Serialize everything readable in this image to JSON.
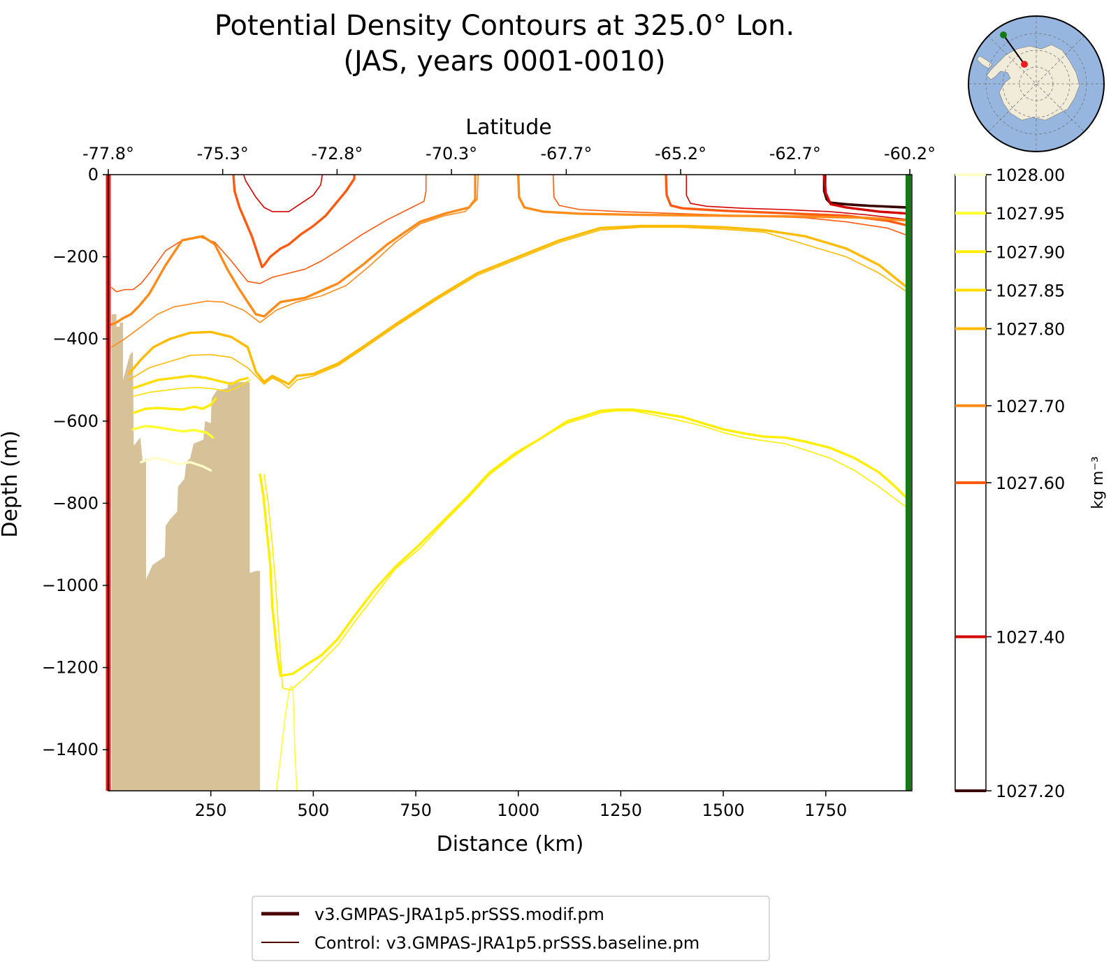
{
  "chart_data": {
    "type": "line",
    "title_line1": "Potential Density Contours at 325.0° Lon.",
    "title_line2": "(JAS, years 0001-0010)",
    "xlabel": "Distance (km)",
    "ylabel": "Depth (m)",
    "top_xlabel": "Latitude",
    "xlim": [
      0,
      1960
    ],
    "ylim": [
      -1500,
      0
    ],
    "x_ticks": [
      {
        "value": 250,
        "label": "250"
      },
      {
        "value": 500,
        "label": "500"
      },
      {
        "value": 750,
        "label": "750"
      },
      {
        "value": 1000,
        "label": "1000"
      },
      {
        "value": 1250,
        "label": "1250"
      },
      {
        "value": 1500,
        "label": "1500"
      },
      {
        "value": 1750,
        "label": "1750"
      }
    ],
    "y_ticks": [
      {
        "value": 0,
        "label": "0"
      },
      {
        "value": -200,
        "label": "−200"
      },
      {
        "value": -400,
        "label": "−400"
      },
      {
        "value": -600,
        "label": "−600"
      },
      {
        "value": -800,
        "label": "−800"
      },
      {
        "value": -1000,
        "label": "−1000"
      },
      {
        "value": -1200,
        "label": "−1200"
      },
      {
        "value": -1400,
        "label": "−1400"
      }
    ],
    "top_ticks": [
      {
        "value": 0,
        "label": "-77.8°"
      },
      {
        "value": 279,
        "label": "-75.3°"
      },
      {
        "value": 558,
        "label": "-72.8°"
      },
      {
        "value": 837,
        "label": "-70.3°"
      },
      {
        "value": 1117,
        "label": "-67.7°"
      },
      {
        "value": 1396,
        "label": "-65.2°"
      },
      {
        "value": 1675,
        "label": "-62.7°"
      },
      {
        "value": 1955,
        "label": "-60.2°"
      }
    ],
    "colorbar": {
      "label": "kg m⁻³",
      "range": [
        1027.2,
        1028.0
      ],
      "levels": [
        {
          "value": 1028.0,
          "label": "1028.00",
          "color": "#fffcc8"
        },
        {
          "value": 1027.95,
          "label": "1027.95",
          "color": "#ffff33"
        },
        {
          "value": 1027.9,
          "label": "1027.90",
          "color": "#ffee00"
        },
        {
          "value": 1027.85,
          "label": "1027.85",
          "color": "#ffdd00"
        },
        {
          "value": 1027.8,
          "label": "1027.80",
          "color": "#ffbb00"
        },
        {
          "value": 1027.7,
          "label": "1027.70",
          "color": "#ff8c1a"
        },
        {
          "value": 1027.6,
          "label": "1027.60",
          "color": "#ff5a10"
        },
        {
          "value": 1027.4,
          "label": "1027.40",
          "color": "#d40000"
        },
        {
          "value": 1027.2,
          "label": "1027.20",
          "color": "#3a0000"
        }
      ]
    },
    "section_start_color": "#ee1c1c",
    "section_end_color": "#157a15",
    "land_color": "#d6c198",
    "land_profile": [
      [
        8,
        -1500
      ],
      [
        8,
        -340
      ],
      [
        20,
        -340
      ],
      [
        20,
        -370
      ],
      [
        28,
        -370
      ],
      [
        28,
        -360
      ],
      [
        36,
        -360
      ],
      [
        36,
        -500
      ],
      [
        52,
        -440
      ],
      [
        60,
        -430
      ],
      [
        62,
        -660
      ],
      [
        78,
        -640
      ],
      [
        84,
        -700
      ],
      [
        92,
        -690
      ],
      [
        92,
        -985
      ],
      [
        108,
        -950
      ],
      [
        138,
        -930
      ],
      [
        140,
        -855
      ],
      [
        150,
        -840
      ],
      [
        168,
        -820
      ],
      [
        170,
        -760
      ],
      [
        186,
        -740
      ],
      [
        190,
        -700
      ],
      [
        200,
        -690
      ],
      [
        208,
        -655
      ],
      [
        232,
        -645
      ],
      [
        236,
        -600
      ],
      [
        250,
        -605
      ],
      [
        252,
        -545
      ],
      [
        258,
        -535
      ],
      [
        265,
        -525
      ],
      [
        290,
        -520
      ],
      [
        294,
        -505
      ],
      [
        345,
        -505
      ],
      [
        345,
        -970
      ],
      [
        360,
        -965
      ],
      [
        370,
        -965
      ],
      [
        370,
        -1500
      ]
    ],
    "series": [
      {
        "name": "1027.20 modified",
        "level": "1027.20",
        "run": "modified",
        "x": [
          1746,
          1746,
          1752,
          1760,
          1800,
          1860,
          1955
        ],
        "y": [
          0,
          -40,
          -60,
          -68,
          -72,
          -76,
          -80
        ]
      },
      {
        "name": "1027.20 control",
        "level": "1027.20",
        "run": "control",
        "x": [
          1750,
          1750,
          1756,
          1770,
          1830,
          1955
        ],
        "y": [
          0,
          -45,
          -65,
          -72,
          -76,
          -82
        ]
      },
      {
        "name": "1027.40 modified",
        "level": "1027.40",
        "run": "modified",
        "x": [
          1746,
          1750,
          1762,
          1800,
          1880,
          1955
        ],
        "y": [
          0,
          -45,
          -72,
          -80,
          -90,
          -95
        ]
      },
      {
        "name": "1027.40 control",
        "level": "1027.40",
        "run": "control",
        "x": [
          330,
          335,
          360,
          380,
          400,
          440,
          500,
          518,
          522
        ],
        "y": [
          0,
          -15,
          -55,
          -80,
          -90,
          -90,
          -50,
          -25,
          0
        ]
      },
      {
        "name": "1027.40 control east",
        "level": "1027.40",
        "run": "control",
        "x": [
          1410,
          1410,
          1420,
          1460,
          1550,
          1650,
          1760,
          1850,
          1955
        ],
        "y": [
          0,
          -50,
          -70,
          -77,
          -82,
          -85,
          -90,
          -98,
          -110
        ]
      },
      {
        "name": "1027.60 modified",
        "level": "1027.60",
        "run": "modified",
        "x": [
          305,
          308,
          320,
          350,
          375,
          380,
          395,
          420,
          440,
          470,
          500,
          530,
          580,
          600,
          600
        ],
        "y": [
          0,
          -40,
          -80,
          -150,
          -225,
          -220,
          -200,
          -180,
          -170,
          -145,
          -125,
          -100,
          -40,
          -10,
          0
        ]
      },
      {
        "name": "1027.60 control",
        "level": "1027.60",
        "run": "control",
        "x": [
          8,
          20,
          40,
          60,
          80,
          100,
          140,
          180,
          220,
          260,
          300,
          340,
          370,
          400,
          440,
          480,
          520,
          560,
          620,
          680,
          740,
          770,
          775,
          775
        ],
        "y": [
          -275,
          -285,
          -280,
          -280,
          -265,
          -240,
          -185,
          -160,
          -150,
          -165,
          -210,
          -260,
          -265,
          -250,
          -240,
          -230,
          -210,
          -185,
          -145,
          -110,
          -80,
          -65,
          -40,
          0
        ]
      },
      {
        "name": "1027.60 modified east",
        "level": "1027.60",
        "run": "modified",
        "x": [
          1360,
          1362,
          1372,
          1400,
          1500,
          1600,
          1700,
          1800,
          1900,
          1955
        ],
        "y": [
          0,
          -50,
          -75,
          -82,
          -88,
          -92,
          -96,
          -100,
          -112,
          -125
        ]
      },
      {
        "name": "1027.60 control east",
        "level": "1027.60",
        "run": "control",
        "x": [
          1085,
          1087,
          1100,
          1150,
          1250,
          1400,
          1550,
          1700,
          1800,
          1900,
          1955
        ],
        "y": [
          0,
          -55,
          -75,
          -85,
          -90,
          -95,
          -100,
          -105,
          -115,
          -130,
          -150
        ]
      },
      {
        "name": "1027.70 modified",
        "level": "1027.70",
        "run": "modified",
        "x": [
          8,
          20,
          35,
          55,
          75,
          100,
          140,
          180,
          230,
          260,
          290,
          320,
          340,
          360,
          380,
          420,
          480,
          560,
          620,
          680,
          760,
          820,
          880,
          895,
          895
        ],
        "y": [
          -365,
          -360,
          -350,
          -340,
          -320,
          -290,
          -220,
          -160,
          -150,
          -170,
          -230,
          -280,
          -310,
          -340,
          -345,
          -310,
          -300,
          -265,
          -220,
          -170,
          -115,
          -95,
          -80,
          -60,
          0
        ]
      },
      {
        "name": "1027.70 control",
        "level": "1027.70",
        "run": "control",
        "x": [
          8,
          40,
          80,
          120,
          160,
          200,
          240,
          280,
          330,
          370,
          410,
          460,
          520,
          580,
          640,
          700,
          760,
          820,
          870,
          900,
          902
        ],
        "y": [
          -420,
          -400,
          -370,
          -340,
          -322,
          -315,
          -308,
          -310,
          -330,
          -360,
          -330,
          -310,
          -295,
          -270,
          -220,
          -165,
          -120,
          -100,
          -90,
          -60,
          0
        ]
      },
      {
        "name": "1027.70 modified east",
        "level": "1027.70",
        "run": "modified",
        "x": [
          1000,
          1002,
          1015,
          1060,
          1150,
          1300,
          1500,
          1700,
          1850,
          1955
        ],
        "y": [
          0,
          -55,
          -80,
          -90,
          -95,
          -98,
          -100,
          -102,
          -105,
          -112
        ]
      },
      {
        "name": "1027.80 modified",
        "level": "1027.80",
        "run": "modified",
        "x": [
          50,
          80,
          110,
          150,
          200,
          250,
          300,
          340,
          360,
          380,
          400,
          420,
          440,
          460,
          500,
          560,
          620,
          700,
          800,
          900,
          1000,
          1100,
          1200,
          1300,
          1400,
          1500,
          1600,
          1700,
          1800,
          1880,
          1955
        ],
        "y": [
          -485,
          -450,
          -420,
          -400,
          -385,
          -383,
          -395,
          -420,
          -480,
          -505,
          -490,
          -500,
          -510,
          -490,
          -485,
          -460,
          -420,
          -365,
          -300,
          -240,
          -200,
          -160,
          -130,
          -125,
          -125,
          -128,
          -135,
          -150,
          -180,
          -220,
          -280
        ]
      },
      {
        "name": "1027.80 control",
        "level": "1027.80",
        "run": "control",
        "x": [
          50,
          100,
          150,
          200,
          250,
          300,
          340,
          360,
          380,
          400,
          420,
          440,
          460,
          500,
          560,
          620,
          700,
          800,
          900,
          1000,
          1100,
          1200,
          1300,
          1400,
          1500,
          1600,
          1700,
          1800,
          1880,
          1955
        ],
        "y": [
          -500,
          -470,
          -455,
          -440,
          -438,
          -445,
          -470,
          -490,
          -510,
          -495,
          -505,
          -520,
          -500,
          -490,
          -465,
          -425,
          -370,
          -305,
          -245,
          -205,
          -165,
          -135,
          -128,
          -128,
          -133,
          -140,
          -170,
          -200,
          -240,
          -290
        ]
      },
      {
        "name": "1027.85 modified",
        "level": "1027.85",
        "run": "modified",
        "x": [
          60,
          90,
          120,
          160,
          200,
          240,
          280,
          300,
          320,
          340
        ],
        "y": [
          -520,
          -510,
          -500,
          -495,
          -490,
          -495,
          -505,
          -510,
          -500,
          -495
        ]
      },
      {
        "name": "1027.85 control",
        "level": "1027.85",
        "run": "control",
        "x": [
          60,
          100,
          140,
          180,
          220,
          260,
          290,
          310,
          330,
          345
        ],
        "y": [
          -540,
          -530,
          -525,
          -520,
          -518,
          -522,
          -528,
          -520,
          -510,
          -500
        ]
      },
      {
        "name": "1027.90 modified",
        "level": "1027.90",
        "run": "modified",
        "x": [
          62,
          90,
          120,
          150,
          180,
          210,
          230,
          250,
          262
        ],
        "y": [
          -580,
          -570,
          -568,
          -570,
          -572,
          -565,
          -570,
          -560,
          -545
        ]
      },
      {
        "name": "1027.90 deep modified",
        "level": "1027.90",
        "run": "modified",
        "x": [
          370,
          378,
          385,
          395,
          400,
          410,
          420,
          450,
          480,
          520,
          560,
          600,
          650,
          700,
          760,
          820,
          880,
          930,
          990,
          1050,
          1120,
          1170,
          1200,
          1240,
          1280,
          1330,
          1400,
          1450,
          1500,
          1550,
          1600,
          1650,
          1700,
          1760,
          1820,
          1880,
          1920,
          1950,
          1955
        ],
        "y": [
          -730,
          -780,
          -850,
          -950,
          -1050,
          -1150,
          -1220,
          -1215,
          -1195,
          -1170,
          -1130,
          -1075,
          -1010,
          -955,
          -900,
          -840,
          -780,
          -725,
          -680,
          -645,
          -600,
          -585,
          -575,
          -572,
          -572,
          -578,
          -590,
          -605,
          -620,
          -630,
          -638,
          -640,
          -650,
          -665,
          -690,
          -725,
          -760,
          -790,
          -805
        ]
      },
      {
        "name": "1027.90 deep control",
        "level": "1027.90",
        "run": "control",
        "x": [
          380,
          390,
          400,
          408,
          415,
          425,
          445,
          480,
          520,
          560,
          600,
          650,
          700,
          760,
          820,
          880,
          930,
          990,
          1050,
          1120,
          1170,
          1200,
          1240,
          1280,
          1330,
          1400,
          1450,
          1500,
          1550,
          1600,
          1650,
          1700,
          1760,
          1820,
          1880,
          1920,
          1950,
          1955
        ],
        "y": [
          -730,
          -800,
          -900,
          -1000,
          -1100,
          -1250,
          -1255,
          -1225,
          -1185,
          -1145,
          -1090,
          -1025,
          -960,
          -910,
          -845,
          -785,
          -730,
          -685,
          -645,
          -605,
          -590,
          -580,
          -575,
          -575,
          -585,
          -600,
          -612,
          -628,
          -640,
          -648,
          -655,
          -670,
          -690,
          -720,
          -760,
          -790,
          -812,
          -818
        ]
      },
      {
        "name": "1027.95 modified",
        "level": "1027.95",
        "run": "modified",
        "x": [
          60,
          90,
          120,
          150,
          180,
          210,
          240,
          255
        ],
        "y": [
          -620,
          -612,
          -615,
          -620,
          -625,
          -622,
          -628,
          -640
        ]
      },
      {
        "name": "1027.95 deep control",
        "level": "1027.95",
        "run": "control",
        "x": [
          410,
          420,
          430,
          440,
          445,
          450,
          452,
          455,
          460
        ],
        "y": [
          -1500,
          -1420,
          -1330,
          -1260,
          -1245,
          -1250,
          -1300,
          -1400,
          -1500
        ]
      },
      {
        "name": "1028.00 modified",
        "level": "1028.00",
        "run": "modified",
        "x": [
          80,
          110,
          140,
          170,
          200,
          230,
          250
        ],
        "y": [
          -700,
          -690,
          -695,
          -705,
          -700,
          -710,
          -720
        ]
      }
    ],
    "legend": {
      "position": "bottom-center",
      "entries": [
        {
          "label": "v3.GMPAS-JRA1p5.prSSS.modif.pm",
          "color": "#4a0000",
          "style": "thick"
        },
        {
          "label": "Control: v3.GMPAS-JRA1p5.prSSS.baseline.pm",
          "color": "#4a0000",
          "style": "thin"
        }
      ]
    },
    "inset_map": {
      "ocean_color": "#96b6e0",
      "land_color": "#f1ecda",
      "start_marker_color": "#ee1c1c",
      "end_marker_color": "#157a15"
    }
  }
}
